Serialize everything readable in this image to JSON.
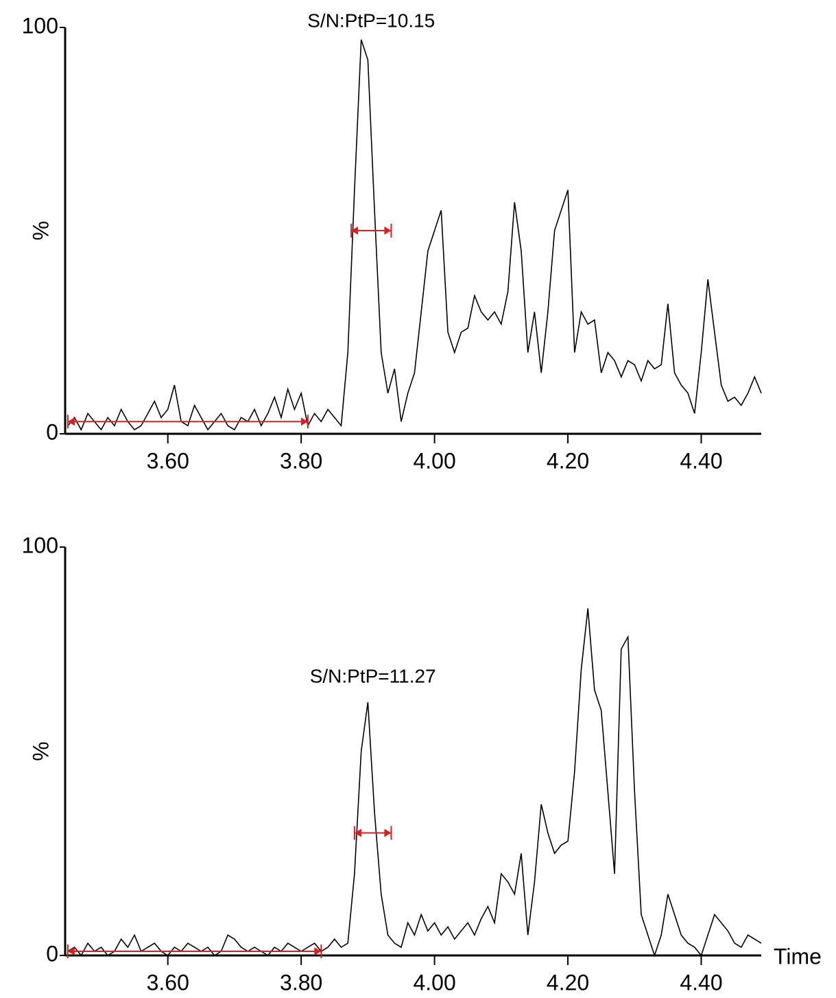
{
  "chart_data": [
    {
      "type": "line",
      "annotation": "S/N:PtP=10.15",
      "ylabel": "%",
      "xlim": [
        3.446,
        4.49
      ],
      "ylim": [
        0,
        100
      ],
      "yticks": [
        0,
        100
      ],
      "xticks": [
        {
          "value": 3.6,
          "label": "3.60"
        },
        {
          "value": 3.8,
          "label": "3.80"
        },
        {
          "value": 4.0,
          "label": "4.00"
        },
        {
          "value": 4.2,
          "label": "4.20"
        },
        {
          "value": 4.4,
          "label": "4.40"
        }
      ],
      "marker_color": "#d62020",
      "noise_range": [
        3.45,
        3.81
      ],
      "noise_level": 3,
      "peak_range": [
        3.875,
        3.935
      ],
      "peak_level": 50,
      "x": [
        3.45,
        3.46,
        3.47,
        3.48,
        3.49,
        3.5,
        3.51,
        3.52,
        3.53,
        3.54,
        3.55,
        3.56,
        3.57,
        3.58,
        3.59,
        3.6,
        3.61,
        3.62,
        3.63,
        3.64,
        3.65,
        3.66,
        3.67,
        3.68,
        3.69,
        3.7,
        3.71,
        3.72,
        3.73,
        3.74,
        3.75,
        3.76,
        3.77,
        3.78,
        3.79,
        3.8,
        3.81,
        3.82,
        3.83,
        3.84,
        3.85,
        3.86,
        3.87,
        3.88,
        3.89,
        3.9,
        3.91,
        3.92,
        3.93,
        3.94,
        3.95,
        3.96,
        3.97,
        3.98,
        3.99,
        4.0,
        4.01,
        4.02,
        4.03,
        4.04,
        4.05,
        4.06,
        4.07,
        4.08,
        4.09,
        4.1,
        4.11,
        4.12,
        4.13,
        4.14,
        4.15,
        4.16,
        4.17,
        4.18,
        4.19,
        4.2,
        4.21,
        4.22,
        4.23,
        4.24,
        4.25,
        4.26,
        4.27,
        4.28,
        4.29,
        4.3,
        4.31,
        4.32,
        4.33,
        4.34,
        4.35,
        4.36,
        4.37,
        4.38,
        4.39,
        4.4,
        4.41,
        4.42,
        4.43,
        4.44,
        4.45,
        4.46,
        4.47,
        4.48,
        4.49
      ],
      "series": [
        {
          "color": "#000000",
          "values": [
            2,
            4,
            1,
            5,
            3,
            1,
            4,
            2,
            6,
            3,
            1,
            2,
            5,
            8,
            4,
            6,
            12,
            3,
            2,
            7,
            4,
            1,
            3,
            5,
            2,
            1,
            4,
            3,
            6,
            2,
            5,
            9,
            4,
            11,
            6,
            10,
            2,
            5,
            3,
            6,
            4,
            2,
            20,
            60,
            97,
            92,
            55,
            20,
            10,
            16,
            3,
            10,
            15,
            30,
            45,
            50,
            55,
            25,
            20,
            25,
            26,
            34,
            30,
            28,
            30,
            27,
            35,
            57,
            45,
            20,
            30,
            15,
            30,
            50,
            55,
            60,
            20,
            30,
            27,
            28,
            15,
            20,
            18,
            14,
            18,
            17,
            13,
            18,
            16,
            17,
            32,
            15,
            12,
            10,
            5,
            20,
            38,
            25,
            12,
            8,
            9,
            7,
            10,
            14,
            10
          ]
        }
      ]
    },
    {
      "type": "line",
      "annotation": "S/N:PtP=11.27",
      "ylabel": "%",
      "xlabel": "Time",
      "xlim": [
        3.446,
        4.49
      ],
      "ylim": [
        0,
        100
      ],
      "yticks": [
        0,
        100
      ],
      "xticks": [
        {
          "value": 3.6,
          "label": "3.60"
        },
        {
          "value": 3.8,
          "label": "3.80"
        },
        {
          "value": 4.0,
          "label": "4.00"
        },
        {
          "value": 4.2,
          "label": "4.20"
        },
        {
          "value": 4.4,
          "label": "4.40"
        }
      ],
      "marker_color": "#d62020",
      "noise_range": [
        3.45,
        3.83
      ],
      "noise_level": 1,
      "peak_range": [
        3.88,
        3.935
      ],
      "peak_level": 30,
      "x": [
        3.45,
        3.46,
        3.47,
        3.48,
        3.49,
        3.5,
        3.51,
        3.52,
        3.53,
        3.54,
        3.55,
        3.56,
        3.57,
        3.58,
        3.59,
        3.6,
        3.61,
        3.62,
        3.63,
        3.64,
        3.65,
        3.66,
        3.67,
        3.68,
        3.69,
        3.7,
        3.71,
        3.72,
        3.73,
        3.74,
        3.75,
        3.76,
        3.77,
        3.78,
        3.79,
        3.8,
        3.81,
        3.82,
        3.83,
        3.84,
        3.85,
        3.86,
        3.87,
        3.88,
        3.89,
        3.9,
        3.91,
        3.92,
        3.93,
        3.94,
        3.95,
        3.96,
        3.97,
        3.98,
        3.99,
        4.0,
        4.01,
        4.02,
        4.03,
        4.04,
        4.05,
        4.06,
        4.07,
        4.08,
        4.09,
        4.1,
        4.11,
        4.12,
        4.13,
        4.14,
        4.15,
        4.16,
        4.17,
        4.18,
        4.19,
        4.2,
        4.21,
        4.22,
        4.23,
        4.24,
        4.25,
        4.26,
        4.27,
        4.28,
        4.29,
        4.3,
        4.31,
        4.32,
        4.33,
        4.34,
        4.35,
        4.36,
        4.37,
        4.38,
        4.39,
        4.4,
        4.41,
        4.42,
        4.43,
        4.44,
        4.45,
        4.46,
        4.47,
        4.48,
        4.49
      ],
      "series": [
        {
          "color": "#000000",
          "values": [
            1,
            2,
            0,
            3,
            1,
            2,
            0,
            1,
            4,
            2,
            5,
            1,
            2,
            3,
            1,
            0,
            2,
            1,
            3,
            2,
            1,
            2,
            0,
            1,
            5,
            4,
            2,
            1,
            2,
            1,
            0,
            2,
            1,
            3,
            2,
            1,
            2,
            3,
            1,
            2,
            4,
            2,
            3,
            20,
            50,
            62,
            35,
            15,
            5,
            3,
            2,
            8,
            5,
            10,
            6,
            8,
            5,
            7,
            4,
            6,
            8,
            5,
            9,
            12,
            8,
            20,
            18,
            15,
            25,
            5,
            18,
            37,
            30,
            25,
            27,
            28,
            45,
            70,
            85,
            65,
            60,
            40,
            20,
            75,
            78,
            40,
            10,
            5,
            0,
            5,
            15,
            10,
            5,
            3,
            2,
            0,
            5,
            10,
            8,
            6,
            3,
            2,
            5,
            4,
            3
          ]
        }
      ]
    }
  ]
}
